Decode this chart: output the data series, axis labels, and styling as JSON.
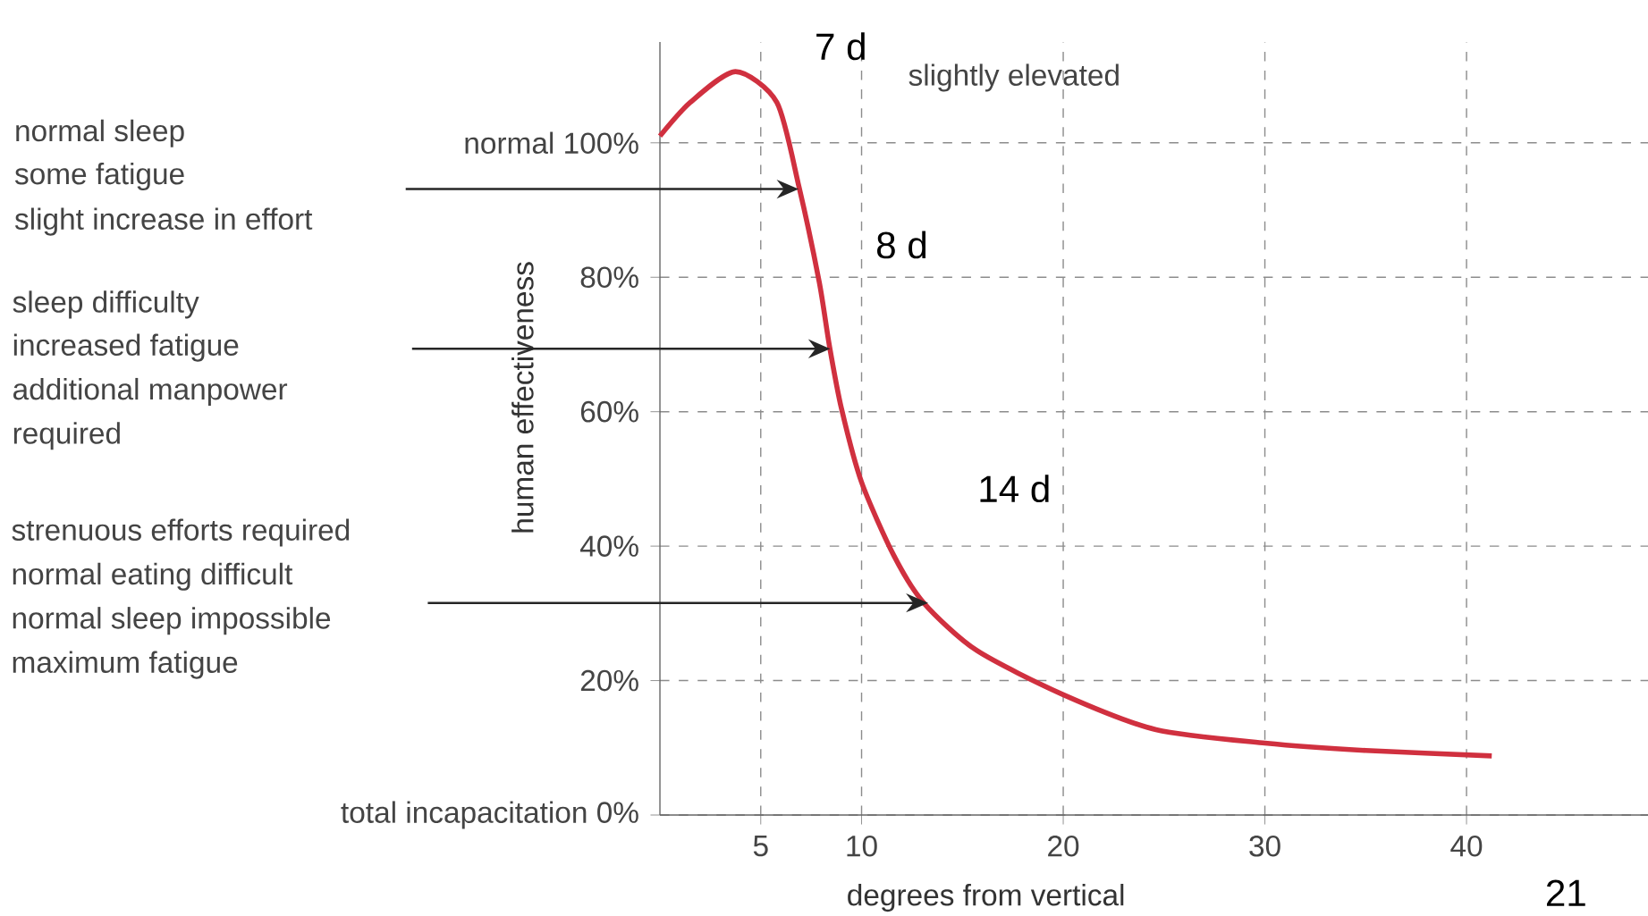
{
  "chart_data": {
    "type": "line",
    "xlabel": "degrees from vertical",
    "ylabel": "human effectiveness",
    "x": [
      0,
      1.5,
      3.75,
      5.8,
      6.9,
      7.9,
      8.4,
      9.0,
      10,
      11.6,
      13.1,
      15.7,
      20,
      24.6,
      30,
      35,
      41.25
    ],
    "series": [
      {
        "color": "#d0303f",
        "values": [
          101,
          106,
          110.6,
          106,
          93.4,
          79.3,
          69.9,
          60.5,
          49.5,
          38.6,
          31.5,
          24.5,
          17.9,
          12.7,
          10.7,
          9.6,
          8.8
        ]
      }
    ],
    "xlim": [
      0,
      49
    ],
    "ylim": [
      0,
      115
    ],
    "xticks": [
      5,
      10,
      20,
      30,
      40
    ],
    "yticks": [
      {
        "value": 0,
        "label": "total incapacitation 0%"
      },
      {
        "value": 20,
        "label": "20%"
      },
      {
        "value": 40,
        "label": "40%"
      },
      {
        "value": 60,
        "label": "60%"
      },
      {
        "value": 80,
        "label": "80%"
      },
      {
        "value": 100,
        "label": "normal 100%"
      }
    ],
    "grid": true,
    "marker": "none",
    "line_style": "solid",
    "annotations": [
      "normal sleep",
      "some fatigue",
      "slight increase in effort",
      "sleep difficulty",
      "increased fatigue",
      "additional manpower",
      "required",
      "strenuous efforts required",
      "normal eating difficult",
      "normal sleep impossible",
      "maximum fatigue",
      "slightly elevated",
      "7 d",
      "8 d",
      "14 d",
      "21"
    ]
  }
}
